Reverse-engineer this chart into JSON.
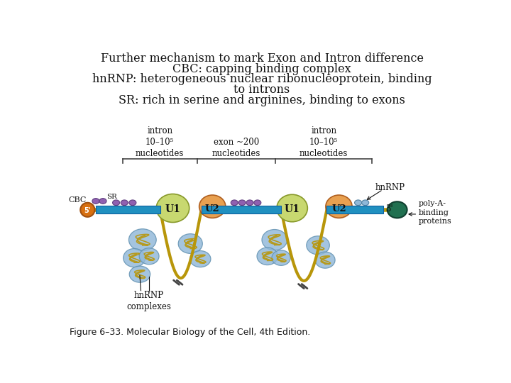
{
  "title_lines": [
    "Further mechanism to mark Exon and Intron difference",
    "CBC: capping binding complex",
    "hnRNP: heterogeneous nuclear ribonucleoprotein, binding",
    "to introns",
    "SR: rich in serine and arginines, binding to exons"
  ],
  "figure_caption": "Figure 6–33. Molecular Biology of the Cell, 4th Edition.",
  "bg_color": "#ffffff",
  "title_fontsize": 11.5,
  "caption_fontsize": 9,
  "colors": {
    "rna_strand": "#b8960a",
    "exon_bar": "#2090c0",
    "u1_blob": "#c8d870",
    "u2_blob": "#e8a050",
    "purple_small": "#9060b0",
    "light_blue_small": "#90b8d8",
    "hnrnp_blob": "#90b8d8",
    "cbc_orange": "#d87010",
    "poly_a_green": "#207050",
    "bracket_color": "#444444",
    "text_color": "#111111"
  }
}
